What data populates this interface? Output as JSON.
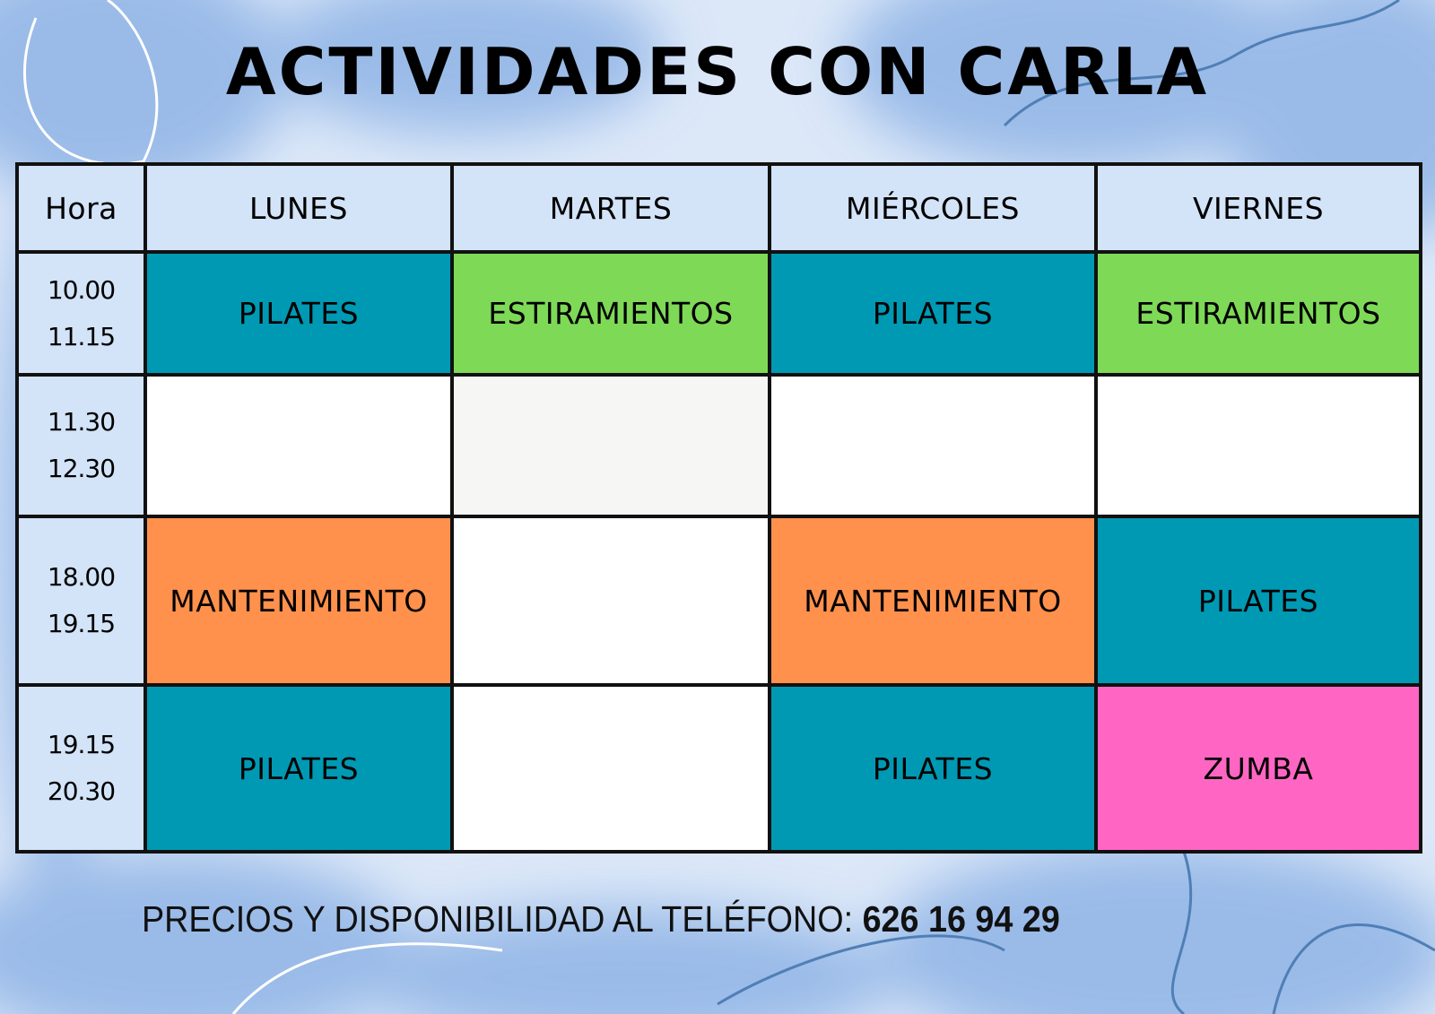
{
  "title": "ACTIVIDADES CON CARLA",
  "schedule": {
    "headers": [
      "Hora",
      "LUNES",
      "MARTES",
      "MIÉRCOLES",
      "VIERNES"
    ],
    "rows": [
      {
        "start": "10.00",
        "end": "11.15",
        "cells": [
          {
            "label": "PILATES",
            "color": "#0099b4"
          },
          {
            "label": "ESTIRAMIENTOS",
            "color": "#7ed957"
          },
          {
            "label": "PILATES",
            "color": "#0099b4"
          },
          {
            "label": "ESTIRAMIENTOS",
            "color": "#7ed957"
          }
        ]
      },
      {
        "start": "11.30",
        "end": "12.30",
        "cells": [
          {
            "label": "",
            "color": "#ffffff"
          },
          {
            "label": "",
            "color": "#f6f7f4"
          },
          {
            "label": "",
            "color": "#ffffff"
          },
          {
            "label": "",
            "color": "#ffffff"
          }
        ]
      },
      {
        "start": "18.00",
        "end": "19.15",
        "cells": [
          {
            "label": "MANTENIMIENTO",
            "color": "#ff914d"
          },
          {
            "label": "",
            "color": "#ffffff"
          },
          {
            "label": "MANTENIMIENTO",
            "color": "#ff914d"
          },
          {
            "label": "PILATES",
            "color": "#0099b4"
          }
        ]
      },
      {
        "start": "19.15",
        "end": "20.30",
        "cells": [
          {
            "label": "PILATES",
            "color": "#0099b4"
          },
          {
            "label": "",
            "color": "#ffffff"
          },
          {
            "label": "PILATES",
            "color": "#0099b4"
          },
          {
            "label": "ZUMBA",
            "color": "#ff66c4"
          }
        ]
      }
    ]
  },
  "footer": {
    "text": "PRECIOS Y DISPONIBILIDAD AL TELÉFONO:",
    "phone": "626 16 94 29"
  }
}
